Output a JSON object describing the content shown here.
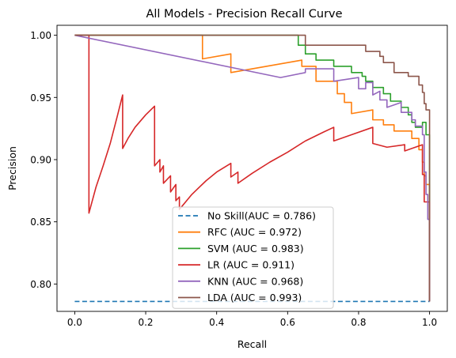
{
  "chart_data": {
    "type": "line",
    "title": "All Models - Precision Recall Curve",
    "xlabel": "Recall",
    "ylabel": "Precision",
    "xlim": [
      -0.05,
      1.05
    ],
    "ylim": [
      0.778,
      1.008
    ],
    "xticks": [
      "0.0",
      "0.2",
      "0.4",
      "0.6",
      "0.8",
      "1.0"
    ],
    "xtick_values": [
      0,
      0.2,
      0.4,
      0.6,
      0.8,
      1.0
    ],
    "yticks": [
      "0.80",
      "0.85",
      "0.90",
      "0.95",
      "1.00"
    ],
    "ytick_values": [
      0.8,
      0.85,
      0.9,
      0.95,
      1.0
    ],
    "grid": false,
    "legend_position": "bottom-center",
    "series": [
      {
        "name": "No Skill(AUC = 0.786)",
        "color": "#1f77b4",
        "dashed": true,
        "points": [
          [
            0,
            0.786
          ],
          [
            1,
            0.786
          ]
        ]
      },
      {
        "name": "RFC (AUC = 0.972)",
        "color": "#ff7f0e",
        "dashed": false,
        "points": [
          [
            0,
            1.0
          ],
          [
            0.36,
            1.0
          ],
          [
            0.36,
            0.981
          ],
          [
            0.44,
            0.985
          ],
          [
            0.44,
            0.97
          ],
          [
            0.64,
            0.98
          ],
          [
            0.64,
            0.975
          ],
          [
            0.68,
            0.975
          ],
          [
            0.68,
            0.963
          ],
          [
            0.74,
            0.963
          ],
          [
            0.74,
            0.953
          ],
          [
            0.76,
            0.953
          ],
          [
            0.76,
            0.946
          ],
          [
            0.78,
            0.946
          ],
          [
            0.78,
            0.937
          ],
          [
            0.84,
            0.94
          ],
          [
            0.84,
            0.932
          ],
          [
            0.87,
            0.932
          ],
          [
            0.87,
            0.928
          ],
          [
            0.9,
            0.928
          ],
          [
            0.9,
            0.923
          ],
          [
            0.95,
            0.923
          ],
          [
            0.95,
            0.917
          ],
          [
            0.97,
            0.917
          ],
          [
            0.97,
            0.908
          ],
          [
            0.98,
            0.908
          ],
          [
            0.98,
            0.898
          ],
          [
            0.985,
            0.898
          ],
          [
            0.985,
            0.887
          ],
          [
            0.99,
            0.887
          ],
          [
            0.99,
            0.88
          ],
          [
            1.0,
            0.88
          ],
          [
            1.0,
            0.786
          ]
        ]
      },
      {
        "name": "SVM (AUC = 0.983)",
        "color": "#2ca02c",
        "dashed": false,
        "points": [
          [
            0,
            1.0
          ],
          [
            0.63,
            1.0
          ],
          [
            0.63,
            0.992
          ],
          [
            0.65,
            0.992
          ],
          [
            0.65,
            0.985
          ],
          [
            0.68,
            0.985
          ],
          [
            0.68,
            0.98
          ],
          [
            0.73,
            0.98
          ],
          [
            0.73,
            0.975
          ],
          [
            0.78,
            0.975
          ],
          [
            0.78,
            0.97
          ],
          [
            0.81,
            0.97
          ],
          [
            0.81,
            0.967
          ],
          [
            0.82,
            0.967
          ],
          [
            0.82,
            0.963
          ],
          [
            0.84,
            0.963
          ],
          [
            0.84,
            0.958
          ],
          [
            0.87,
            0.958
          ],
          [
            0.87,
            0.953
          ],
          [
            0.89,
            0.953
          ],
          [
            0.89,
            0.947
          ],
          [
            0.92,
            0.947
          ],
          [
            0.92,
            0.942
          ],
          [
            0.94,
            0.942
          ],
          [
            0.94,
            0.936
          ],
          [
            0.95,
            0.936
          ],
          [
            0.95,
            0.93
          ],
          [
            0.96,
            0.93
          ],
          [
            0.96,
            0.926
          ],
          [
            0.98,
            0.926
          ],
          [
            0.98,
            0.93
          ],
          [
            0.99,
            0.93
          ],
          [
            0.99,
            0.92
          ],
          [
            1.0,
            0.92
          ],
          [
            1.0,
            0.786
          ]
        ]
      },
      {
        "name": "LR (AUC = 0.911)",
        "color": "#d62728",
        "dashed": false,
        "points": [
          [
            0,
            1.0
          ],
          [
            0.04,
            1.0
          ],
          [
            0.04,
            0.857
          ],
          [
            0.06,
            0.878
          ],
          [
            0.08,
            0.895
          ],
          [
            0.1,
            0.913
          ],
          [
            0.12,
            0.935
          ],
          [
            0.135,
            0.952
          ],
          [
            0.135,
            0.909
          ],
          [
            0.15,
            0.917
          ],
          [
            0.17,
            0.926
          ],
          [
            0.2,
            0.936
          ],
          [
            0.225,
            0.943
          ],
          [
            0.225,
            0.895
          ],
          [
            0.24,
            0.9
          ],
          [
            0.24,
            0.89
          ],
          [
            0.25,
            0.895
          ],
          [
            0.25,
            0.881
          ],
          [
            0.27,
            0.887
          ],
          [
            0.27,
            0.874
          ],
          [
            0.285,
            0.88
          ],
          [
            0.285,
            0.867
          ],
          [
            0.295,
            0.87
          ],
          [
            0.295,
            0.86
          ],
          [
            0.33,
            0.872
          ],
          [
            0.37,
            0.883
          ],
          [
            0.4,
            0.89
          ],
          [
            0.44,
            0.897
          ],
          [
            0.44,
            0.886
          ],
          [
            0.46,
            0.89
          ],
          [
            0.46,
            0.881
          ],
          [
            0.5,
            0.889
          ],
          [
            0.55,
            0.898
          ],
          [
            0.6,
            0.906
          ],
          [
            0.65,
            0.915
          ],
          [
            0.7,
            0.922
          ],
          [
            0.73,
            0.926
          ],
          [
            0.73,
            0.915
          ],
          [
            0.78,
            0.92
          ],
          [
            0.84,
            0.926
          ],
          [
            0.84,
            0.913
          ],
          [
            0.88,
            0.91
          ],
          [
            0.93,
            0.912
          ],
          [
            0.93,
            0.907
          ],
          [
            0.98,
            0.912
          ],
          [
            0.98,
            0.888
          ],
          [
            0.985,
            0.888
          ],
          [
            0.985,
            0.866
          ],
          [
            1.0,
            0.866
          ],
          [
            1.0,
            0.786
          ]
        ]
      },
      {
        "name": "KNN (AUC = 0.968)",
        "color": "#9467bd",
        "dashed": false,
        "points": [
          [
            0,
            1.0
          ],
          [
            0.58,
            0.966
          ],
          [
            0.65,
            0.97
          ],
          [
            0.65,
            0.973
          ],
          [
            0.73,
            0.973
          ],
          [
            0.73,
            0.963
          ],
          [
            0.8,
            0.966
          ],
          [
            0.8,
            0.957
          ],
          [
            0.82,
            0.957
          ],
          [
            0.82,
            0.962
          ],
          [
            0.84,
            0.962
          ],
          [
            0.84,
            0.952
          ],
          [
            0.86,
            0.955
          ],
          [
            0.86,
            0.948
          ],
          [
            0.88,
            0.948
          ],
          [
            0.88,
            0.942
          ],
          [
            0.92,
            0.946
          ],
          [
            0.92,
            0.938
          ],
          [
            0.95,
            0.938
          ],
          [
            0.95,
            0.932
          ],
          [
            0.96,
            0.932
          ],
          [
            0.96,
            0.927
          ],
          [
            0.98,
            0.927
          ],
          [
            0.98,
            0.92
          ],
          [
            0.985,
            0.92
          ],
          [
            0.985,
            0.89
          ],
          [
            0.99,
            0.89
          ],
          [
            0.99,
            0.872
          ],
          [
            0.995,
            0.872
          ],
          [
            0.995,
            0.852
          ],
          [
            1.0,
            0.852
          ],
          [
            1.0,
            0.83
          ],
          [
            1.0,
            0.786
          ]
        ]
      },
      {
        "name": "LDA (AUC = 0.993)",
        "color": "#8c564b",
        "dashed": false,
        "points": [
          [
            0,
            1.0
          ],
          [
            0.65,
            1.0
          ],
          [
            0.65,
            0.992
          ],
          [
            0.82,
            0.992
          ],
          [
            0.82,
            0.987
          ],
          [
            0.86,
            0.987
          ],
          [
            0.86,
            0.983
          ],
          [
            0.87,
            0.983
          ],
          [
            0.87,
            0.978
          ],
          [
            0.9,
            0.978
          ],
          [
            0.9,
            0.97
          ],
          [
            0.94,
            0.97
          ],
          [
            0.94,
            0.967
          ],
          [
            0.97,
            0.967
          ],
          [
            0.97,
            0.96
          ],
          [
            0.98,
            0.96
          ],
          [
            0.98,
            0.954
          ],
          [
            0.985,
            0.954
          ],
          [
            0.985,
            0.945
          ],
          [
            0.99,
            0.945
          ],
          [
            0.99,
            0.94
          ],
          [
            1.0,
            0.94
          ],
          [
            1.0,
            0.786
          ]
        ]
      }
    ]
  }
}
